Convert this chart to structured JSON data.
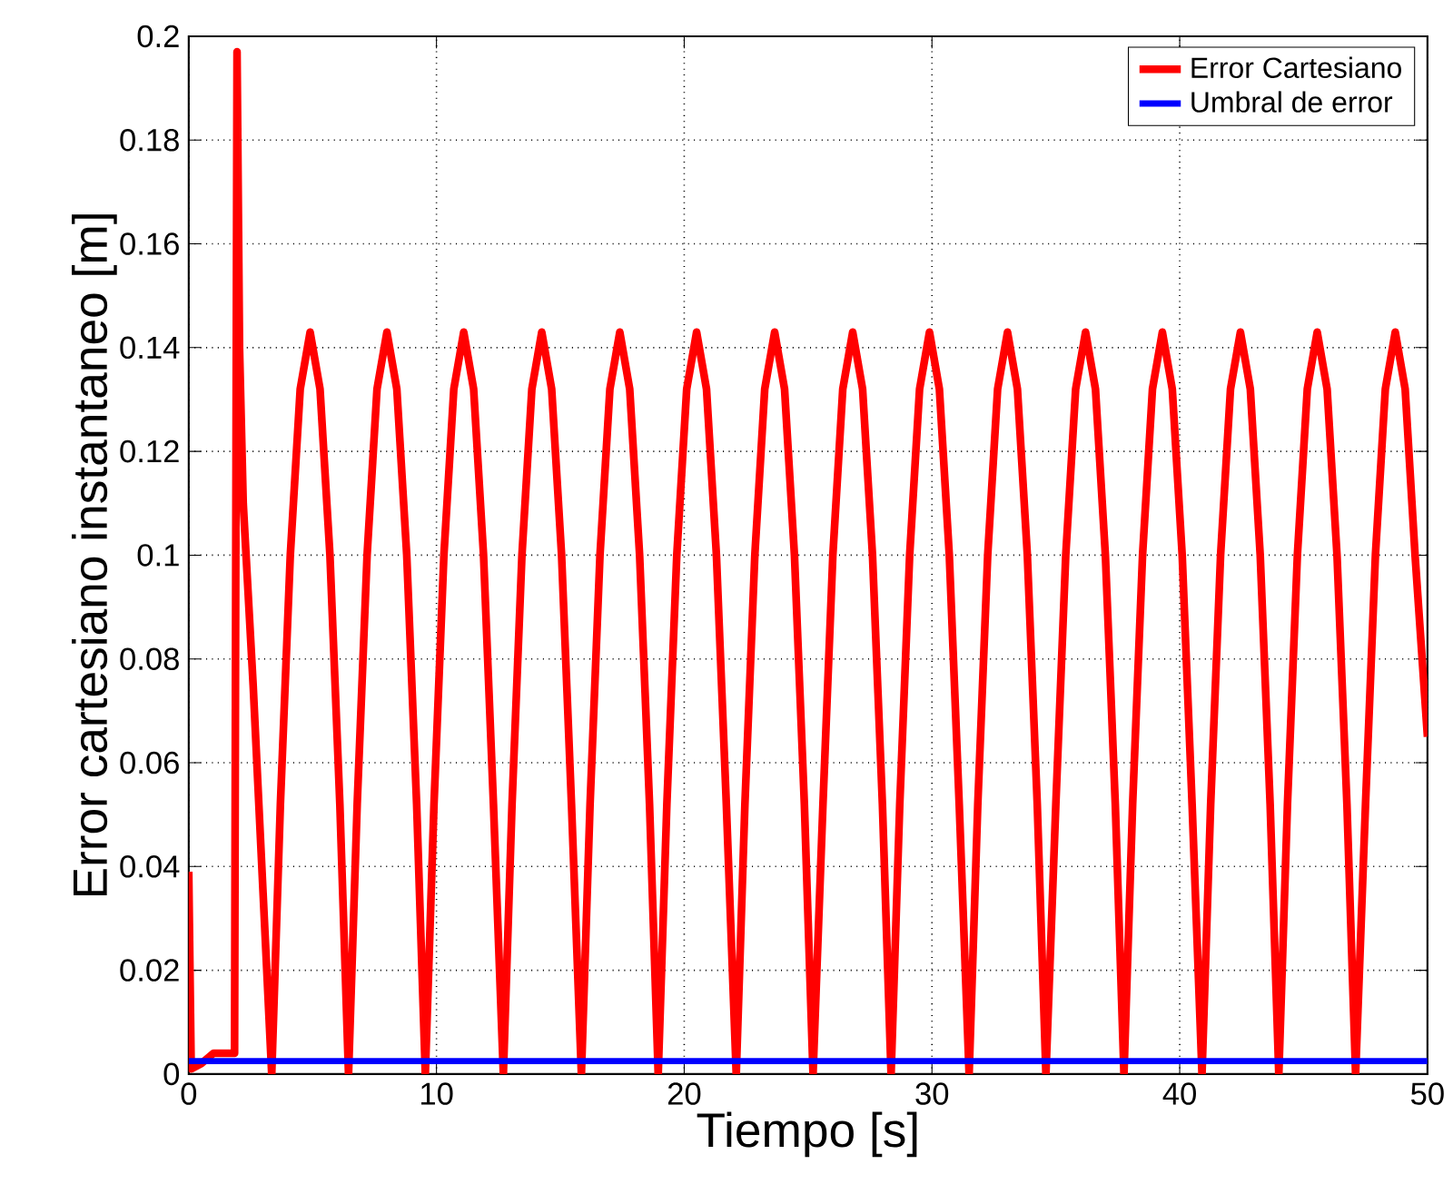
{
  "chart_data": {
    "type": "line",
    "xlabel": "Tiempo [s]",
    "ylabel": "Error cartesiano instantaneo [m]",
    "xlim": [
      0,
      50
    ],
    "ylim": [
      0,
      0.2
    ],
    "xticks": [
      0,
      10,
      20,
      30,
      40,
      50
    ],
    "yticks": [
      0,
      0.02,
      0.04,
      0.06,
      0.08,
      0.1,
      0.12,
      0.14,
      0.16,
      0.18,
      0.2
    ],
    "grid": true,
    "legend": "top right",
    "marker": "none",
    "line_style": "solid",
    "series": [
      {
        "name": "Error Cartesiano",
        "color": "#ff0000",
        "x": [
          0,
          0.1,
          0.5,
          1,
          1.85,
          1.95,
          2.05,
          2.2,
          2.6,
          3.0,
          3.35,
          3.7,
          4.1,
          4.5,
          4.9,
          5.3,
          5.7,
          6.1,
          6.45,
          6.8,
          7.2,
          7.6,
          8.0,
          8.4,
          8.8,
          9.2,
          9.55,
          9.9,
          10.3,
          10.7,
          11.1,
          11.5,
          11.9,
          12.3,
          12.7,
          13.05,
          13.45,
          13.85,
          14.25,
          14.65,
          15.05,
          15.45,
          15.85,
          16.2,
          16.6,
          17.0,
          17.4,
          17.8,
          18.2,
          18.6,
          18.95,
          19.3,
          19.7,
          20.1,
          20.5,
          20.9,
          21.3,
          21.7,
          22.1,
          22.45,
          22.85,
          23.25,
          23.65,
          24.05,
          24.45,
          24.85,
          25.2,
          25.6,
          26.0,
          26.4,
          26.8,
          27.2,
          27.6,
          28.0,
          28.35,
          28.7,
          29.1,
          29.5,
          29.9,
          30.3,
          30.7,
          31.1,
          31.5,
          31.85,
          32.25,
          32.65,
          33.05,
          33.45,
          33.85,
          34.25,
          34.6,
          35.0,
          35.4,
          35.8,
          36.2,
          36.6,
          37.0,
          37.4,
          37.75,
          38.1,
          38.5,
          38.9,
          39.3,
          39.7,
          40.1,
          40.5,
          40.9,
          41.25,
          41.65,
          42.05,
          42.45,
          42.85,
          43.25,
          43.65,
          44.0,
          44.35,
          44.75,
          45.15,
          45.55,
          45.95,
          46.35,
          46.75,
          47.1,
          47.5,
          47.9,
          48.3,
          48.7,
          49.1,
          49.5,
          50
        ],
        "values": [
          0.039,
          0.001,
          0.002,
          0.004,
          0.004,
          0.197,
          0.14,
          0.11,
          0.075,
          0.035,
          0,
          0.052,
          0.1,
          0.132,
          0.143,
          0.132,
          0.1,
          0.052,
          0,
          0.052,
          0.1,
          0.132,
          0.143,
          0.132,
          0.1,
          0.052,
          0,
          0.052,
          0.1,
          0.132,
          0.143,
          0.132,
          0.1,
          0.052,
          0,
          0.052,
          0.1,
          0.132,
          0.143,
          0.132,
          0.1,
          0.052,
          0,
          0.052,
          0.1,
          0.132,
          0.143,
          0.132,
          0.1,
          0.052,
          0,
          0.052,
          0.1,
          0.132,
          0.143,
          0.132,
          0.1,
          0.052,
          0,
          0.052,
          0.1,
          0.132,
          0.143,
          0.132,
          0.1,
          0.052,
          0,
          0.052,
          0.1,
          0.132,
          0.143,
          0.132,
          0.1,
          0.052,
          0,
          0.052,
          0.1,
          0.132,
          0.143,
          0.132,
          0.1,
          0.052,
          0,
          0.052,
          0.1,
          0.132,
          0.143,
          0.132,
          0.1,
          0.052,
          0,
          0.052,
          0.1,
          0.132,
          0.143,
          0.132,
          0.1,
          0.052,
          0,
          0.052,
          0.1,
          0.132,
          0.143,
          0.132,
          0.1,
          0.052,
          0,
          0.052,
          0.1,
          0.132,
          0.143,
          0.132,
          0.1,
          0.052,
          0,
          0.052,
          0.1,
          0.132,
          0.143,
          0.132,
          0.1,
          0.052,
          0,
          0.052,
          0.1,
          0.132,
          0.143,
          0.132,
          0.1,
          0.065
        ]
      },
      {
        "name": "Umbral de error",
        "color": "#0000ff",
        "x": [
          0,
          50
        ],
        "values": [
          0.0025,
          0.0025
        ]
      }
    ]
  }
}
